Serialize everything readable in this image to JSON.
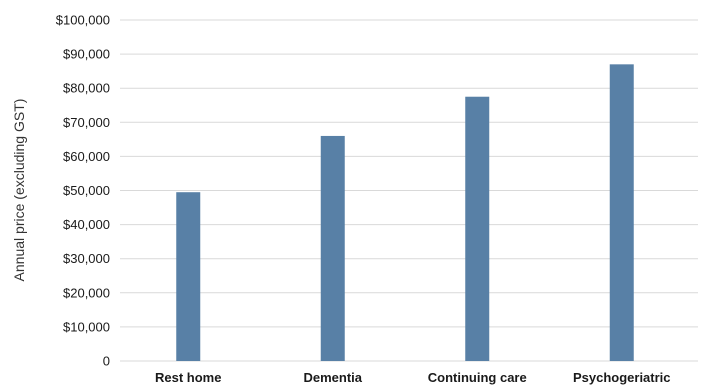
{
  "chart_data": {
    "type": "bar",
    "categories": [
      "Rest home",
      "Dementia",
      "Continuing care",
      "Psychogeriatric"
    ],
    "values": [
      49500,
      66000,
      77500,
      87000
    ],
    "ylabel": "Annual price (excluding GST)",
    "ylim": [
      0,
      100000
    ],
    "yticks": [
      "0",
      "$10,000",
      "$20,000",
      "$30,000",
      "$40,000",
      "$50,000",
      "$60,000",
      "$70,000",
      "$80,000",
      "$90,000",
      "$100,000"
    ],
    "grid": true,
    "legend": "none",
    "bar_color": "#5880a6",
    "grid_color": "#d9d9d9"
  }
}
